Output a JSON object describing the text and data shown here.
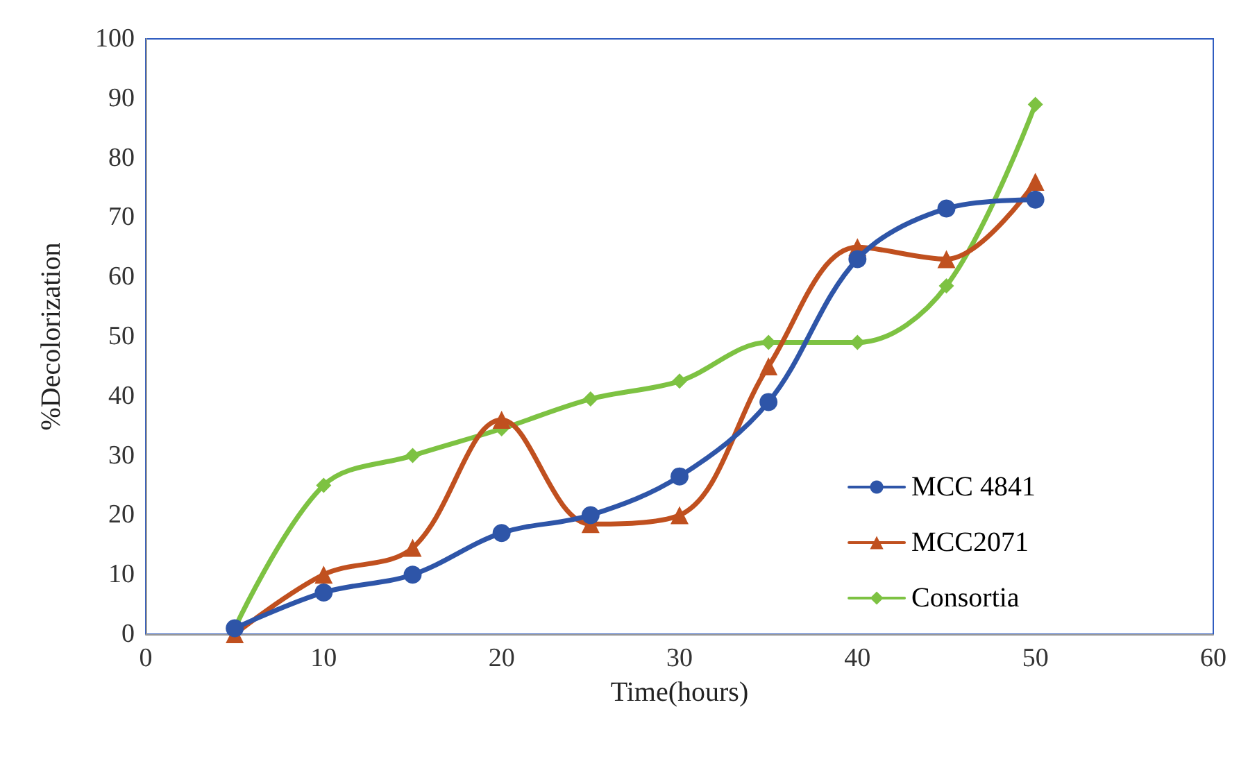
{
  "chart_data": {
    "type": "line",
    "xlabel": "Time(hours)",
    "ylabel": "%Decolorization",
    "x": [
      5,
      10,
      15,
      20,
      25,
      30,
      35,
      40,
      45,
      50
    ],
    "series": [
      {
        "name": "MCC 4841",
        "color": "#2e55a8",
        "marker": "circle",
        "values": [
          1,
          7,
          10,
          17,
          20,
          26.5,
          39,
          63,
          71.5,
          73
        ]
      },
      {
        "name": "MCC2071",
        "color": "#c0501f",
        "marker": "triangle",
        "values": [
          0,
          10,
          14.5,
          36,
          18.5,
          20,
          45,
          65,
          63,
          76
        ]
      },
      {
        "name": "Consortia",
        "color": "#7dc242",
        "marker": "diamond",
        "values": [
          1,
          25,
          30,
          34.5,
          39.5,
          42.5,
          49,
          49,
          58.5,
          89
        ]
      }
    ],
    "xlim": [
      0,
      60
    ],
    "xticks": [
      0,
      10,
      20,
      30,
      40,
      50,
      60
    ],
    "ylim": [
      0,
      100
    ],
    "yticks": [
      0,
      10,
      20,
      30,
      40,
      50,
      60,
      70,
      80,
      90,
      100
    ],
    "grid": false,
    "legend": "bottom right",
    "line_style": "solid"
  }
}
